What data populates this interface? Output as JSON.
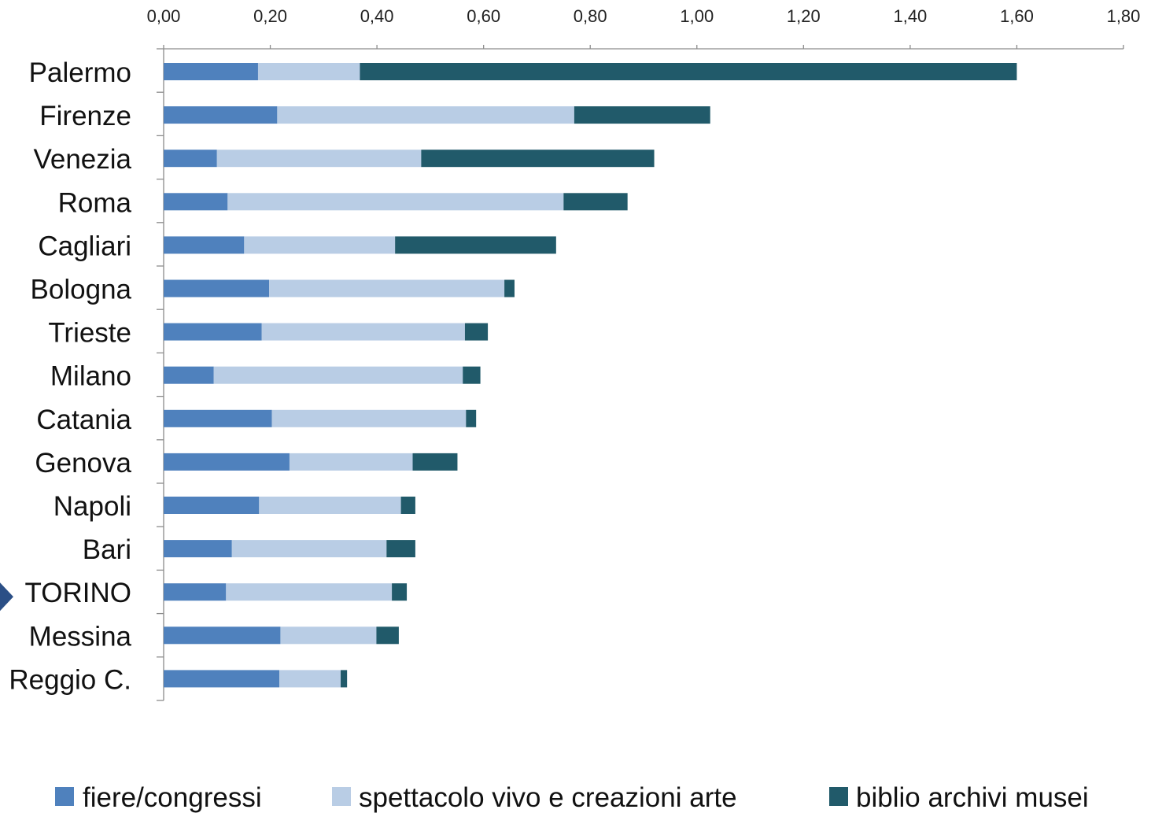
{
  "chart_data": {
    "type": "bar",
    "orientation": "horizontal",
    "stacked": true,
    "title": "",
    "xlabel": "",
    "ylabel": "",
    "xlim": [
      0,
      1.8
    ],
    "x_ticks": [
      "0,00",
      "0,20",
      "0,40",
      "0,60",
      "0,80",
      "1,00",
      "1,20",
      "1,40",
      "1,60",
      "1,80"
    ],
    "x_axis_position": "top",
    "grid": false,
    "legend_position": "bottom",
    "categories": [
      "Palermo",
      "Firenze",
      "Venezia",
      "Roma",
      "Cagliari",
      "Bologna",
      "Trieste",
      "Milano",
      "Catania",
      "Genova",
      "Napoli",
      "Bari",
      "TORINO",
      "Messina",
      "Reggio C."
    ],
    "highlighted_category": "TORINO",
    "highlight_marker": "arrow-pointer-icon",
    "series": [
      {
        "name": "fiere/congressi",
        "color": "#4f81bd",
        "values": [
          0.177,
          0.213,
          0.1,
          0.12,
          0.151,
          0.198,
          0.184,
          0.094,
          0.203,
          0.236,
          0.179,
          0.128,
          0.117,
          0.219,
          0.217
        ]
      },
      {
        "name": "spettacolo vivo e creazioni arte",
        "color": "#b9cde5",
        "values": [
          0.191,
          0.557,
          0.383,
          0.63,
          0.283,
          0.441,
          0.381,
          0.467,
          0.364,
          0.231,
          0.266,
          0.29,
          0.311,
          0.18,
          0.115
        ]
      },
      {
        "name": "biblio archivi musei",
        "color": "#215a6a",
        "values": [
          1.232,
          0.255,
          0.437,
          0.12,
          0.302,
          0.019,
          0.043,
          0.033,
          0.019,
          0.084,
          0.027,
          0.054,
          0.028,
          0.042,
          0.012
        ]
      }
    ]
  }
}
